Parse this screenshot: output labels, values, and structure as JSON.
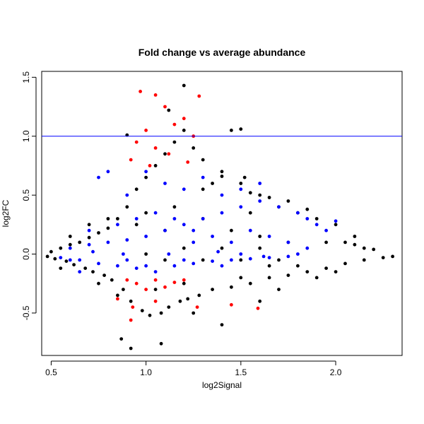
{
  "chart_data": {
    "type": "scatter",
    "title": "Fold change vs average abundance",
    "xlabel": "log2Signal",
    "ylabel": "log2FC",
    "xlim": [
      0.45,
      2.35
    ],
    "ylim": [
      -0.86,
      1.55
    ],
    "x_ticks": [
      0.5,
      1.0,
      1.5,
      2.0
    ],
    "x_tick_labels": [
      "0.5",
      "1.0",
      "1.5",
      "2.0"
    ],
    "y_ticks": [
      -0.5,
      0.0,
      0.5,
      1.0,
      1.5
    ],
    "y_tick_labels": [
      "-0.5",
      "0.0",
      "0.5",
      "1.0",
      "1.5"
    ],
    "reference_lines": [
      {
        "axis": "y",
        "value": 1.0,
        "color": "#0000ff"
      }
    ],
    "grid": false,
    "colors": {
      "black": "#000000",
      "blue": "#0000ff",
      "red": "#ff0000"
    },
    "series": [
      {
        "color": "black",
        "values": [
          [
            0.48,
            -0.02
          ],
          [
            0.5,
            0.02
          ],
          [
            0.52,
            -0.04
          ],
          [
            0.55,
            0.05
          ],
          [
            0.58,
            -0.06
          ],
          [
            0.6,
            0.08
          ],
          [
            0.62,
            -0.09
          ],
          [
            0.65,
            0.1
          ],
          [
            0.68,
            -0.12
          ],
          [
            0.7,
            0.14
          ],
          [
            0.72,
            -0.15
          ],
          [
            0.75,
            0.18
          ],
          [
            0.78,
            -0.18
          ],
          [
            0.8,
            0.22
          ],
          [
            0.82,
            -0.22
          ],
          [
            0.85,
            0.3
          ],
          [
            0.88,
            -0.3
          ],
          [
            0.9,
            0.4
          ],
          [
            0.92,
            -0.4
          ],
          [
            0.95,
            0.55
          ],
          [
            0.98,
            -0.48
          ],
          [
            1.0,
            0.65
          ],
          [
            1.02,
            -0.52
          ],
          [
            1.05,
            0.75
          ],
          [
            1.08,
            -0.5
          ],
          [
            1.1,
            0.85
          ],
          [
            1.12,
            -0.45
          ],
          [
            1.15,
            0.95
          ],
          [
            1.18,
            -0.4
          ],
          [
            1.2,
            1.05
          ],
          [
            1.22,
            -0.38
          ],
          [
            1.25,
            0.9
          ],
          [
            1.28,
            -0.35
          ],
          [
            1.3,
            0.8
          ],
          [
            1.35,
            -0.3
          ],
          [
            1.4,
            0.7
          ],
          [
            1.45,
            -0.28
          ],
          [
            1.5,
            0.6
          ],
          [
            1.55,
            -0.25
          ],
          [
            1.6,
            0.5
          ],
          [
            1.65,
            -0.2
          ],
          [
            1.7,
            0.4
          ],
          [
            1.75,
            -0.18
          ],
          [
            1.8,
            0.35
          ],
          [
            1.85,
            -0.15
          ],
          [
            1.9,
            0.3
          ],
          [
            1.95,
            -0.12
          ],
          [
            2.0,
            0.25
          ],
          [
            2.05,
            -0.08
          ],
          [
            2.1,
            0.08
          ],
          [
            2.15,
            -0.05
          ],
          [
            2.2,
            0.04
          ],
          [
            2.25,
            -0.03
          ],
          [
            2.3,
            -0.02
          ],
          [
            0.87,
            -0.72
          ],
          [
            0.92,
            -0.8
          ],
          [
            1.08,
            -0.76
          ],
          [
            1.2,
            1.43
          ],
          [
            0.9,
            1.01
          ],
          [
            1.12,
            1.22
          ],
          [
            1.5,
            1.06
          ],
          [
            1.45,
            1.05
          ],
          [
            1.52,
            0.65
          ],
          [
            1.4,
            0.66
          ],
          [
            1.75,
            0.45
          ],
          [
            1.85,
            0.38
          ],
          [
            1.3,
            0.55
          ],
          [
            1.35,
            0.6
          ],
          [
            1.55,
            0.52
          ],
          [
            1.65,
            0.48
          ],
          [
            1.0,
            0.35
          ],
          [
            1.1,
            0.2
          ],
          [
            0.7,
            0.25
          ],
          [
            0.75,
            -0.25
          ],
          [
            0.8,
            0.3
          ],
          [
            0.85,
            -0.35
          ],
          [
            1.25,
            -0.5
          ],
          [
            1.4,
            -0.6
          ],
          [
            1.6,
            -0.4
          ],
          [
            1.7,
            -0.3
          ],
          [
            1.9,
            -0.2
          ],
          [
            2.0,
            -0.15
          ],
          [
            2.1,
            0.15
          ],
          [
            0.6,
            0.15
          ],
          [
            0.55,
            -0.12
          ],
          [
            0.95,
            0.25
          ],
          [
            1.05,
            -0.3
          ],
          [
            1.15,
            0.4
          ],
          [
            1.2,
            -0.25
          ],
          [
            1.3,
            0.3
          ],
          [
            1.45,
            0.2
          ],
          [
            1.5,
            -0.2
          ],
          [
            1.55,
            0.35
          ],
          [
            1.6,
            0.15
          ],
          [
            1.65,
            -0.1
          ],
          [
            1.75,
            0.1
          ],
          [
            1.8,
            -0.1
          ],
          [
            1.95,
            0.1
          ],
          [
            2.05,
            0.1
          ],
          [
            2.15,
            0.05
          ],
          [
            1.0,
            0.0
          ],
          [
            1.1,
            -0.05
          ],
          [
            1.2,
            0.05
          ],
          [
            1.3,
            -0.05
          ],
          [
            1.4,
            0.05
          ],
          [
            1.5,
            -0.05
          ],
          [
            1.6,
            0.05
          ],
          [
            1.7,
            -0.05
          ]
        ]
      },
      {
        "color": "blue",
        "values": [
          [
            0.55,
            -0.03
          ],
          [
            0.6,
            0.05
          ],
          [
            0.65,
            -0.05
          ],
          [
            0.7,
            0.08
          ],
          [
            0.75,
            -0.08
          ],
          [
            0.8,
            0.1
          ],
          [
            0.85,
            -0.1
          ],
          [
            0.9,
            0.12
          ],
          [
            0.95,
            -0.12
          ],
          [
            1.0,
            0.15
          ],
          [
            1.05,
            -0.15
          ],
          [
            1.1,
            0.2
          ],
          [
            1.15,
            -0.1
          ],
          [
            1.2,
            0.25
          ],
          [
            1.25,
            -0.08
          ],
          [
            1.3,
            0.3
          ],
          [
            1.35,
            -0.06
          ],
          [
            1.4,
            0.35
          ],
          [
            1.45,
            -0.05
          ],
          [
            1.5,
            0.4
          ],
          [
            1.55,
            -0.04
          ],
          [
            1.6,
            0.45
          ],
          [
            1.65,
            -0.03
          ],
          [
            1.7,
            0.4
          ],
          [
            1.75,
            -0.02
          ],
          [
            1.8,
            0.35
          ],
          [
            1.85,
            0.3
          ],
          [
            1.9,
            0.25
          ],
          [
            1.95,
            0.2
          ],
          [
            2.0,
            0.28
          ],
          [
            0.75,
            0.65
          ],
          [
            0.8,
            0.7
          ],
          [
            0.9,
            0.5
          ],
          [
            1.0,
            0.7
          ],
          [
            1.1,
            0.6
          ],
          [
            1.2,
            0.55
          ],
          [
            1.3,
            0.65
          ],
          [
            1.4,
            0.5
          ],
          [
            1.5,
            0.55
          ],
          [
            1.6,
            0.6
          ],
          [
            0.65,
            -0.15
          ],
          [
            0.7,
            0.2
          ],
          [
            0.85,
            0.25
          ],
          [
            0.95,
            0.3
          ],
          [
            1.05,
            0.35
          ],
          [
            1.15,
            0.3
          ],
          [
            1.25,
            0.2
          ],
          [
            1.35,
            0.15
          ],
          [
            1.45,
            0.1
          ],
          [
            1.55,
            0.2
          ],
          [
            1.65,
            0.15
          ],
          [
            1.75,
            0.1
          ],
          [
            1.85,
            0.05
          ],
          [
            0.6,
            -0.05
          ],
          [
            0.9,
            -0.05
          ],
          [
            1.2,
            -0.05
          ],
          [
            1.5,
            0.0
          ],
          [
            1.8,
            0.0
          ],
          [
            0.88,
            0.0
          ],
          [
            1.12,
            0.0
          ],
          [
            1.38,
            0.02
          ],
          [
            1.62,
            -0.02
          ],
          [
            0.72,
            0.02
          ],
          [
            1.0,
            -0.1
          ],
          [
            1.25,
            0.1
          ],
          [
            1.4,
            -0.1
          ]
        ]
      },
      {
        "color": "red",
        "values": [
          [
            0.97,
            1.38
          ],
          [
            1.05,
            1.35
          ],
          [
            1.28,
            1.34
          ],
          [
            1.1,
            1.25
          ],
          [
            1.2,
            1.15
          ],
          [
            1.0,
            1.05
          ],
          [
            1.15,
            1.1
          ],
          [
            1.25,
            1.0
          ],
          [
            0.95,
            0.95
          ],
          [
            1.05,
            0.9
          ],
          [
            1.12,
            0.85
          ],
          [
            0.92,
            0.8
          ],
          [
            1.02,
            0.75
          ],
          [
            1.22,
            0.78
          ],
          [
            0.9,
            -0.22
          ],
          [
            0.95,
            -0.25
          ],
          [
            1.0,
            -0.3
          ],
          [
            1.05,
            -0.22
          ],
          [
            1.1,
            -0.28
          ],
          [
            1.15,
            -0.24
          ],
          [
            1.2,
            -0.22
          ],
          [
            0.85,
            -0.38
          ],
          [
            0.93,
            -0.45
          ],
          [
            0.92,
            -0.56
          ],
          [
            1.05,
            -0.4
          ],
          [
            1.27,
            -0.45
          ],
          [
            1.45,
            -0.43
          ],
          [
            1.59,
            -0.46
          ]
        ]
      }
    ]
  }
}
